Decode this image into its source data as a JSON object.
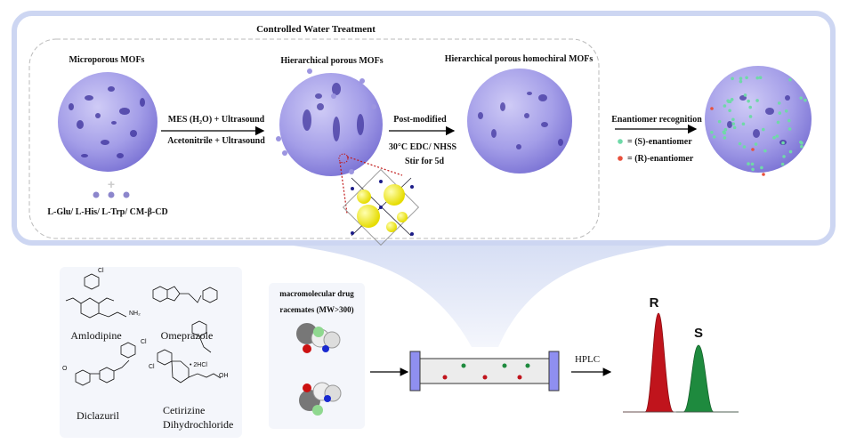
{
  "top_panel": {
    "title": "Controlled Water Treatment",
    "stage1_label": "Microporous MOFs",
    "stage1_additives": "L-Glu/ L-His/ L-Trp/ CM-β-CD",
    "step1_top": "MES (H₂O) + Ultrasound",
    "step1_bottom": "Acetonitrile + Ultrasound",
    "stage2_label": "Hierarchical porous MOFs",
    "step2_top": "Post-modified",
    "step2_bottom1": "30°C  EDC/ NHSS",
    "step2_bottom2": "Stir for 5d",
    "stage3_label": "Hierarchical porous homochiral MOFs",
    "step3_top": "Enantiomer recognition",
    "legend": [
      {
        "label": "= (S)-enantiomer",
        "color": "#6fd9a8"
      },
      {
        "label": "= (R)-enantiomer",
        "color": "#e8503c"
      }
    ]
  },
  "bottom_panel": {
    "drugs": [
      "Amlodipine",
      "Omeprazole",
      "Diclazuril",
      "Cetirizine",
      "Dihydrochloride"
    ],
    "salt_label": "• 2HCl",
    "racemate_title_1": "macromolecular drug",
    "racemate_title_2": "racemates (MW>300)",
    "hplc_label": "HPLC",
    "peak_r": "R",
    "peak_s": "S"
  },
  "colors": {
    "mof": "#a49ee8",
    "peak_r": "#c0141c",
    "peak_s": "#1e8a3e",
    "column_end": "#8f8ff0",
    "panel_border": "#cdd6f2"
  }
}
